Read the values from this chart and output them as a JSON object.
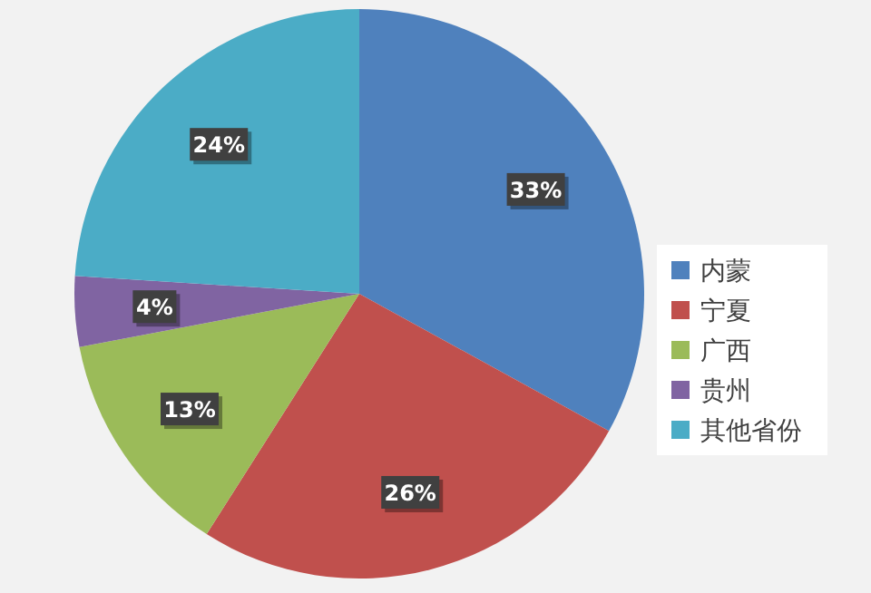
{
  "chart_data": {
    "type": "pie",
    "categories": [
      "内蒙",
      "宁夏",
      "广西",
      "贵州",
      "其他省份"
    ],
    "values": [
      33,
      26,
      13,
      4,
      24
    ],
    "colors": [
      "#4f81bd",
      "#c0504d",
      "#9bbb59",
      "#8064a2",
      "#4bacc6"
    ],
    "value_labels": [
      "33%",
      "26%",
      "13%",
      "4%",
      "24%"
    ],
    "legend": "right"
  }
}
